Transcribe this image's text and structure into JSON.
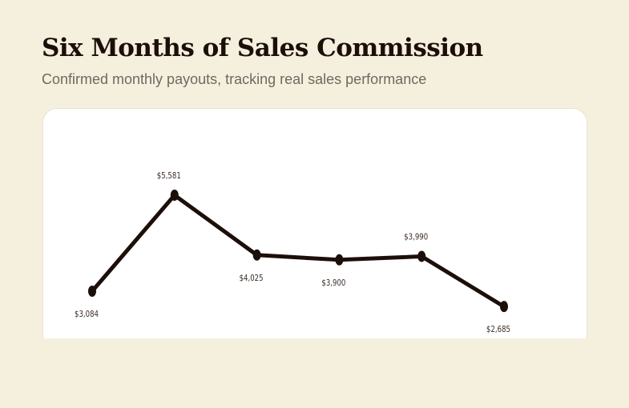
{
  "header": {
    "title": "Six Months of Sales Commission",
    "subtitle": "Confirmed monthly payouts, tracking real sales performance"
  },
  "colors": {
    "background": "#f5f0de",
    "card": "#ffffff",
    "line": "#1c0f0a",
    "title": "#1c0f0a",
    "subtitle": "#6f6860"
  },
  "chart_data": {
    "type": "line",
    "x": [
      1,
      2,
      3,
      4,
      5,
      6
    ],
    "series": [
      {
        "values": [
          3084,
          5581,
          4025,
          3900,
          3990,
          2685
        ],
        "labels": [
          "$3,084",
          "$5,581",
          "$4,025",
          "$3,900",
          "$3,990",
          "$2,685"
        ]
      }
    ],
    "title": "",
    "xlabel": "",
    "ylabel": "",
    "grid": false,
    "legend": "none"
  }
}
